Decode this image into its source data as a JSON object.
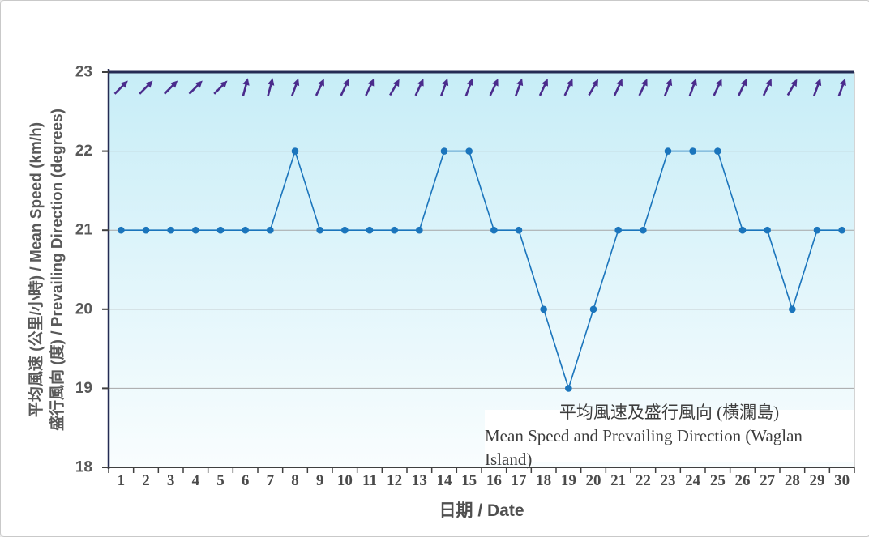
{
  "window": {
    "background": "#ffffff",
    "border_color": "#c9c9c9"
  },
  "chart_data": {
    "type": "line",
    "title_zh": "平均風速及盛行風向 (橫瀾島)",
    "title_en": "Mean Speed and Prevailing Direction (Waglan Island)",
    "xlabel": "日期 / Date",
    "ylabel_line1": "平均風速 (公里/小時) / Mean Speed (km/h)",
    "ylabel_line2": "盛行風向 (度) / Prevailing Direction (degrees)",
    "x_categories": [
      1,
      2,
      3,
      4,
      5,
      6,
      7,
      8,
      9,
      10,
      11,
      12,
      13,
      14,
      15,
      16,
      17,
      18,
      19,
      20,
      21,
      22,
      23,
      24,
      25,
      26,
      27,
      28,
      29,
      30
    ],
    "series": [
      {
        "name": "Mean Speed (km/h)",
        "values": [
          21,
          21,
          21,
          21,
          21,
          21,
          21,
          22,
          21,
          21,
          21,
          21,
          21,
          22,
          22,
          21,
          21,
          20,
          19,
          20,
          21,
          21,
          22,
          22,
          22,
          21,
          21,
          20,
          21,
          21
        ]
      }
    ],
    "arrow_angles_deg": [
      45,
      45,
      45,
      45,
      45,
      15,
      15,
      20,
      25,
      25,
      25,
      30,
      25,
      20,
      20,
      25,
      20,
      25,
      25,
      30,
      25,
      25,
      20,
      20,
      25,
      25,
      25,
      30,
      20,
      20
    ],
    "ylim": [
      18,
      23
    ],
    "yticks": [
      23,
      22,
      21,
      20,
      19,
      18
    ],
    "grid_values": [
      22,
      21,
      20,
      19
    ],
    "grid": "horizontal",
    "legend_position": "inside-bottom-right",
    "colors": {
      "line": "#1B75BC",
      "marker": "#1B75BC",
      "arrow": "#4A2B8C",
      "grid": "#A6A6A6",
      "axis_frame": "#242B53",
      "axis_bottom": "#404040",
      "right_border": "#A8A8A8",
      "ytick_text": "#595959",
      "xtick_text": "#4A4A4A",
      "title_text": "#3D3D3D",
      "plot_bg_top": "#C7EDF7",
      "plot_bg_bottom": "#F9FDFE",
      "title_bg": "#FFFFFF"
    }
  }
}
